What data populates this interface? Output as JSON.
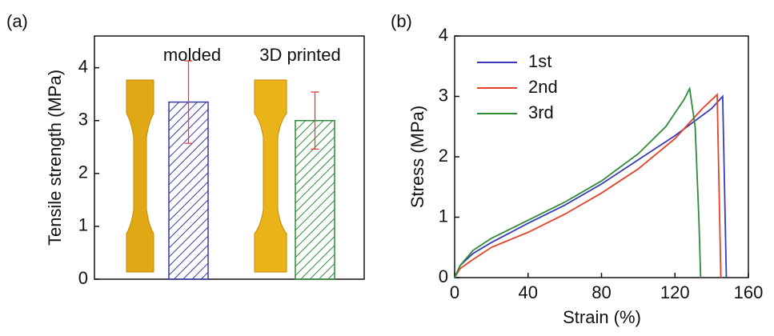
{
  "chart_data": [
    {
      "type": "bar",
      "panel_label": "(a)",
      "y_label": "Tensile strength (MPa)",
      "categories": [
        "molded",
        "3D printed"
      ],
      "values": [
        3.35,
        3.0
      ],
      "errors": [
        0.78,
        0.54
      ],
      "colors": [
        "#3a3aa8",
        "#2e8b3a"
      ],
      "error_color": "#e0403a",
      "ylim": [
        0,
        4.6
      ],
      "yticks": [
        0,
        1,
        2,
        3,
        4
      ]
    },
    {
      "type": "line",
      "panel_label": "(b)",
      "x_label": "Strain (%)",
      "y_label": "Stress (MPa)",
      "xlim": [
        0,
        160
      ],
      "xticks": [
        0,
        40,
        80,
        120,
        160
      ],
      "ylim": [
        0,
        4
      ],
      "yticks": [
        0,
        1,
        2,
        3,
        4
      ],
      "legend": "upper left",
      "series": [
        {
          "name": "1st",
          "color": "#3a3ab8",
          "x": [
            0,
            3,
            10,
            20,
            40,
            60,
            80,
            100,
            120,
            140,
            146,
            147,
            148
          ],
          "values": [
            0,
            0.2,
            0.4,
            0.58,
            0.9,
            1.2,
            1.55,
            1.95,
            2.35,
            2.8,
            3.0,
            1.5,
            0
          ]
        },
        {
          "name": "2nd",
          "color": "#e8402a",
          "x": [
            0,
            3,
            10,
            20,
            40,
            60,
            80,
            100,
            120,
            135,
            143,
            144,
            145
          ],
          "values": [
            0,
            0.15,
            0.3,
            0.5,
            0.75,
            1.05,
            1.4,
            1.8,
            2.3,
            2.8,
            3.03,
            1.5,
            0
          ]
        },
        {
          "name": "3rd",
          "color": "#2e8b3a",
          "x": [
            0,
            3,
            10,
            20,
            40,
            60,
            80,
            100,
            115,
            125,
            128,
            131,
            133,
            134
          ],
          "values": [
            0,
            0.2,
            0.45,
            0.65,
            0.95,
            1.25,
            1.6,
            2.05,
            2.5,
            2.95,
            3.13,
            2.5,
            1.0,
            0
          ]
        }
      ]
    }
  ]
}
